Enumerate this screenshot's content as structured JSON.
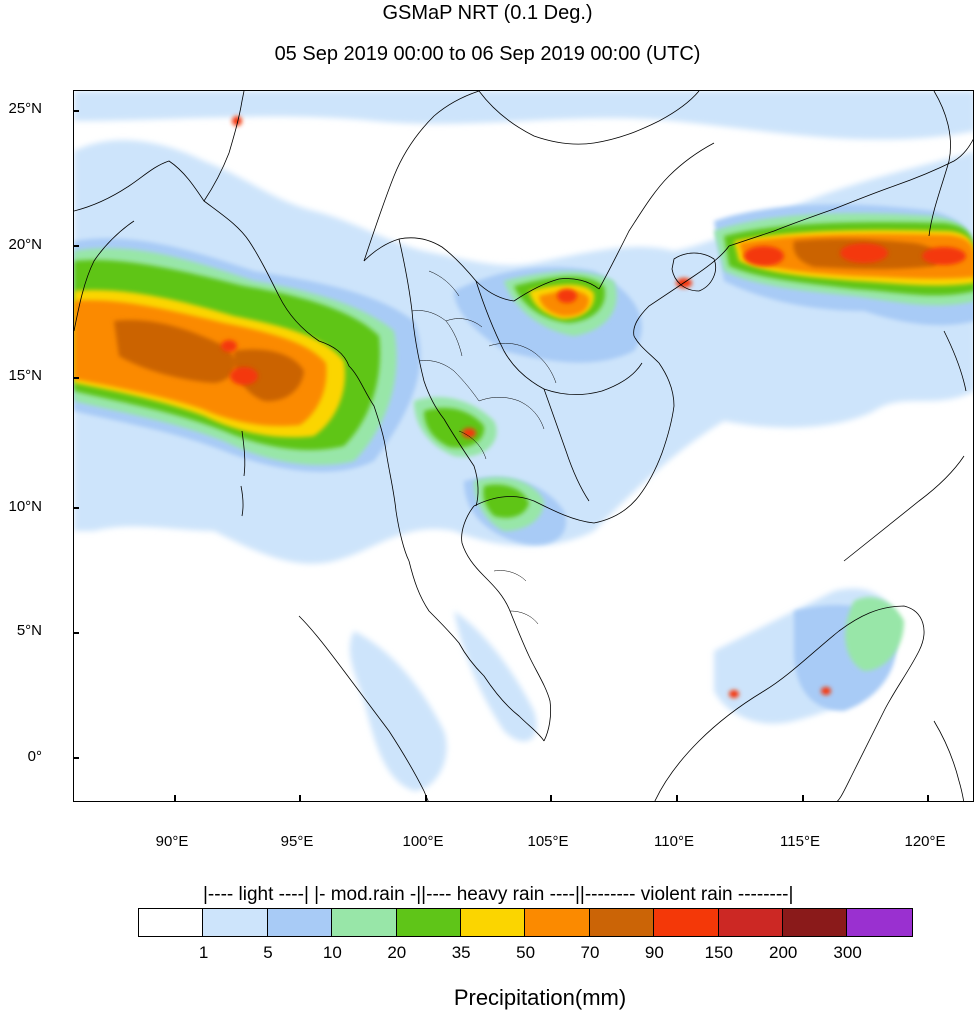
{
  "header": {
    "title": "GSMaP NRT (0.1 Deg.)",
    "subtitle": "05 Sep 2019 00:00 to 06 Sep 2019 00:00 (UTC)"
  },
  "map": {
    "lat_ticks": [
      "25°N",
      "20°N",
      "15°N",
      "10°N",
      "5°N",
      "0°"
    ],
    "lon_ticks": [
      "90°E",
      "95°E",
      "100°E",
      "105°E",
      "110°E",
      "115°E",
      "120°E"
    ],
    "extent": {
      "lon_min": 86,
      "lon_max": 122,
      "lat_min": -1.7,
      "lat_max": 26.1
    }
  },
  "legend": {
    "categories_line": "|---- light ----| |- mod.rain -||---- heavy rain ----||-------- violent rain --------|",
    "bins": [
      "1",
      "5",
      "10",
      "20",
      "35",
      "50",
      "70",
      "90",
      "150",
      "200",
      "300"
    ],
    "colors": [
      "#ffffff",
      "#cde4fb",
      "#a8cbf6",
      "#98e6a8",
      "#5fc518",
      "#fbd500",
      "#fb8a00",
      "#cb6406",
      "#f43808",
      "#cc2824",
      "#8a1a1a",
      "#9a30d0"
    ],
    "unit_label": "Precipitation(mm)"
  }
}
